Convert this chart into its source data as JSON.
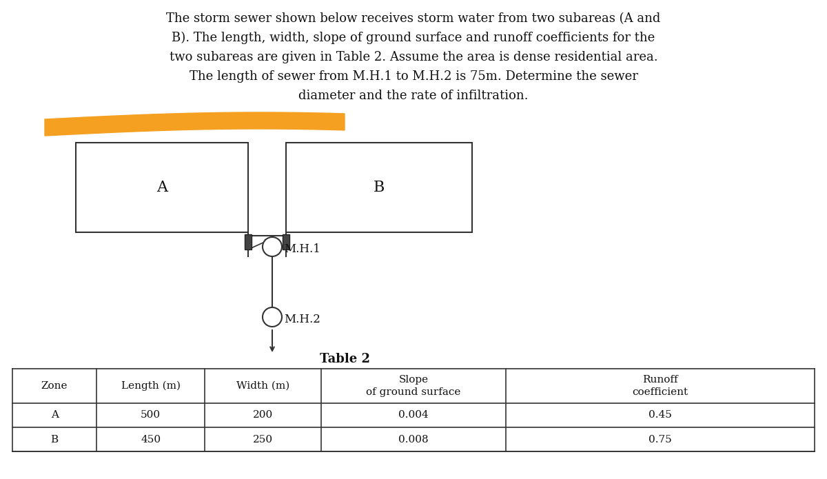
{
  "paragraph_lines": [
    "The storm sewer shown below receives storm water from two subareas (A and",
    "B). The length, width, slope of ground surface and runoff coefficients for the",
    "two subareas are given in Table 2. Assume the area is dense residential area.",
    "The length of sewer from M.H.1 to M.H.2 is 75m. Determine the sewer",
    "diameter and the rate of infiltration."
  ],
  "pipe_color": "#f5a020",
  "box_color": "#333333",
  "col_headers": [
    "Zone",
    "Length (m)",
    "Width (m)",
    "Slope\nof ground surface",
    "Runoff\ncoefficient"
  ],
  "rows": [
    [
      "A",
      "500",
      "200",
      "0.004",
      "0.45"
    ],
    [
      "B",
      "450",
      "250",
      "0.008",
      "0.75"
    ]
  ],
  "table_title": "Table 2"
}
